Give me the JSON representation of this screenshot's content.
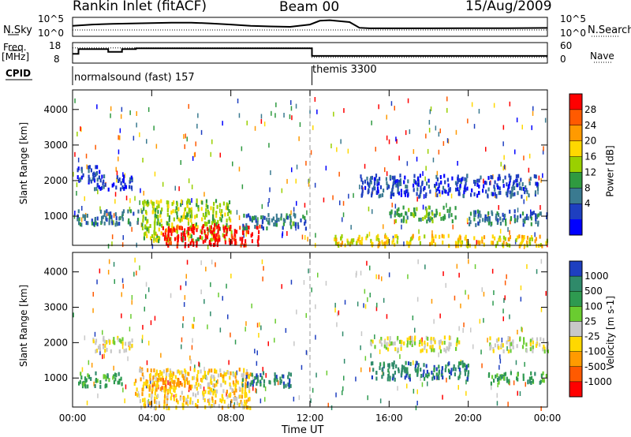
{
  "header": {
    "station": "Rankin Inlet (fitACF)",
    "beam": "Beam 00",
    "date": "15/Aug/2009"
  },
  "side_labels": {
    "nsky": "N.Sky",
    "nsearch": "N.Search",
    "freq": "Freq.",
    "freq_unit": "[MHz]",
    "nave": "Nave",
    "cpid": "CPID"
  },
  "chart_data": [
    {
      "type": "line",
      "name": "noise_panel",
      "left_axis": {
        "ticks": [
          "10^5",
          "10^0"
        ]
      },
      "right_axis": {
        "ticks": [
          "10^5",
          "10^0"
        ]
      },
      "series": [
        {
          "name": "N.Sky",
          "x_hours": [
            0,
            1,
            2,
            3,
            4,
            5,
            6,
            7,
            8,
            9,
            10,
            11,
            12,
            12.5,
            13,
            14,
            14.5,
            15,
            16,
            18,
            20,
            22,
            24
          ],
          "level": [
            0.55,
            0.62,
            0.66,
            0.68,
            0.7,
            0.72,
            0.72,
            0.68,
            0.62,
            0.55,
            0.52,
            0.5,
            0.62,
            0.82,
            0.85,
            0.75,
            0.45,
            0.42,
            0.42,
            0.42,
            0.43,
            0.43,
            0.44
          ]
        }
      ]
    },
    {
      "type": "line",
      "name": "frequency_panel",
      "left_axis": {
        "ticks": [
          "18",
          "8"
        ]
      },
      "right_axis": {
        "ticks": [
          "60",
          "0"
        ]
      },
      "series": [
        {
          "name": "Freq",
          "x_hours": [
            0,
            0.3,
            0.3,
            1.8,
            1.8,
            2.5,
            2.5,
            3.2,
            3.2,
            12.1,
            12.1,
            24
          ],
          "level": [
            0.45,
            0.45,
            0.68,
            0.68,
            0.55,
            0.55,
            0.68,
            0.68,
            0.72,
            0.72,
            0.35,
            0.35
          ]
        },
        {
          "name": "Nave",
          "x_hours": [
            0,
            12.1,
            12.1,
            24
          ],
          "level": [
            0.74,
            0.74,
            0.28,
            0.28
          ]
        }
      ]
    },
    {
      "type": "table",
      "name": "cpid",
      "segments": [
        {
          "label": "normalsound (fast) 157",
          "start": "00:00",
          "end": "12:00"
        },
        {
          "label": "themis 3300",
          "start": "12:00",
          "end": "24:00"
        }
      ]
    },
    {
      "type": "heatmap",
      "name": "power",
      "ylabel": "Slant Range [km]",
      "yticks": [
        "4000",
        "3000",
        "2000",
        "1000"
      ],
      "ytick_values": [
        4000,
        3000,
        2000,
        1000
      ],
      "ylim": [
        180,
        4550
      ],
      "xlim_hours": [
        0,
        24
      ],
      "colorbar_label": "Power [dB]",
      "colorbar_ticks": [
        "28",
        "24",
        "20",
        "16",
        "12",
        "8",
        "4"
      ],
      "colorbar_colors": [
        "#ff0000",
        "#ff5a00",
        "#ff9a00",
        "#ffd800",
        "#9ad000",
        "#2f9a40",
        "#3a7a90",
        "#1e3fc0",
        "#0000ff"
      ],
      "regions": [
        {
          "x": [
            0.2,
            1.4
          ],
          "y": [
            2000,
            2450
          ],
          "level": 1
        },
        {
          "x": [
            1.0,
            3.0
          ],
          "y": [
            1800,
            2200
          ],
          "level": 1
        },
        {
          "x": [
            0.2,
            3.5
          ],
          "y": [
            800,
            1200
          ],
          "level": 2
        },
        {
          "x": [
            3.5,
            8.0
          ],
          "y": [
            350,
            1500
          ],
          "level": 4
        },
        {
          "x": [
            4.5,
            9.5
          ],
          "y": [
            200,
            800
          ],
          "level": 8
        },
        {
          "x": [
            8.5,
            11.8
          ],
          "y": [
            700,
            1100
          ],
          "level": 2
        },
        {
          "x": [
            14.5,
            23.5
          ],
          "y": [
            1600,
            2200
          ],
          "level": 1
        },
        {
          "x": [
            16.0,
            19.5
          ],
          "y": [
            900,
            1300
          ],
          "level": 3
        },
        {
          "x": [
            20.0,
            24.0
          ],
          "y": [
            800,
            1200
          ],
          "level": 2
        },
        {
          "x": [
            13.0,
            24.0
          ],
          "y": [
            200,
            500
          ],
          "level": 5
        }
      ]
    },
    {
      "type": "heatmap",
      "name": "velocity",
      "ylabel": "Slant Range [km]",
      "yticks": [
        "4000",
        "3000",
        "2000",
        "1000"
      ],
      "ytick_values": [
        4000,
        3000,
        2000,
        1000
      ],
      "ylim": [
        180,
        4550
      ],
      "xlim_hours": [
        0,
        24
      ],
      "xticks": [
        "00:00",
        "04:00",
        "08:00",
        "12:00",
        "16:00",
        "20:00",
        "00:00"
      ],
      "xtick_values": [
        0,
        4,
        8,
        12,
        16,
        20,
        24
      ],
      "xlabel": "Time UT",
      "colorbar_label": "Velocity [m s-1]",
      "colorbar_ticks": [
        "1000",
        "500",
        "100",
        "25",
        "-25",
        "-100",
        "-500",
        "-1000"
      ],
      "colorbar_colors": [
        "#1e3fc0",
        "#2f8a6a",
        "#2e9a50",
        "#6acc30",
        "#c8c8c8",
        "#ffd800",
        "#ff9a00",
        "#ff5a00",
        "#ff0000"
      ],
      "regions": [
        {
          "x": [
            0.2,
            2.5
          ],
          "y": [
            800,
            1200
          ],
          "level": 6
        },
        {
          "x": [
            1.0,
            3.0
          ],
          "y": [
            1800,
            2200
          ],
          "level": 4
        },
        {
          "x": [
            3.0,
            9.0
          ],
          "y": [
            200,
            1300
          ],
          "level": 3
        },
        {
          "x": [
            4.0,
            6.0
          ],
          "y": [
            700,
            1100
          ],
          "level": 2
        },
        {
          "x": [
            8.5,
            11.0
          ],
          "y": [
            800,
            1200
          ],
          "level": 7
        },
        {
          "x": [
            15.0,
            19.5
          ],
          "y": [
            1800,
            2200
          ],
          "level": 4
        },
        {
          "x": [
            15.0,
            20.0
          ],
          "y": [
            1000,
            1500
          ],
          "level": 7
        },
        {
          "x": [
            21.0,
            24.0
          ],
          "y": [
            1800,
            2200
          ],
          "level": 4
        },
        {
          "x": [
            21.0,
            24.0
          ],
          "y": [
            900,
            1200
          ],
          "level": 6
        }
      ]
    }
  ]
}
